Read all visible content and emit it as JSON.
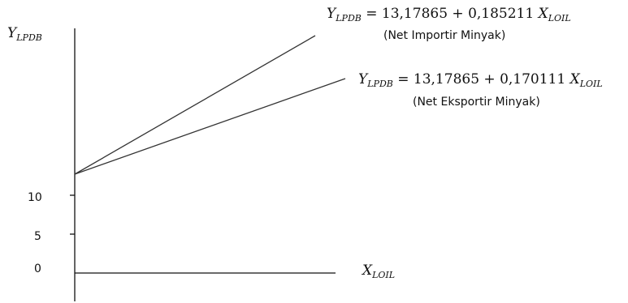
{
  "axes": {
    "y_label": {
      "base": "Y",
      "sub": "LPDB"
    },
    "x_label": {
      "base": "X",
      "sub": "LOIL"
    },
    "ticks": [
      {
        "label": "10",
        "value": 10
      },
      {
        "label": "5",
        "value": 5
      },
      {
        "label": "0",
        "value": 0
      }
    ]
  },
  "equations": [
    {
      "lhs": {
        "base": "Y",
        "sub": "LPDB"
      },
      "rhs_text": " = 13,17865 + 0,185211 ",
      "var": {
        "base": "X",
        "sub": "LOIL"
      },
      "note": "(Net Importir Minyak)",
      "intercept": 13.17865,
      "slope": 0.185211
    },
    {
      "lhs": {
        "base": "Y",
        "sub": "LPDB"
      },
      "rhs_text": " = 13,17865 + 0,170111 ",
      "var": {
        "base": "X",
        "sub": "LOIL"
      },
      "note": "(Net Eksportir Minyak)",
      "intercept": 13.17865,
      "slope": 0.170111
    }
  ]
}
